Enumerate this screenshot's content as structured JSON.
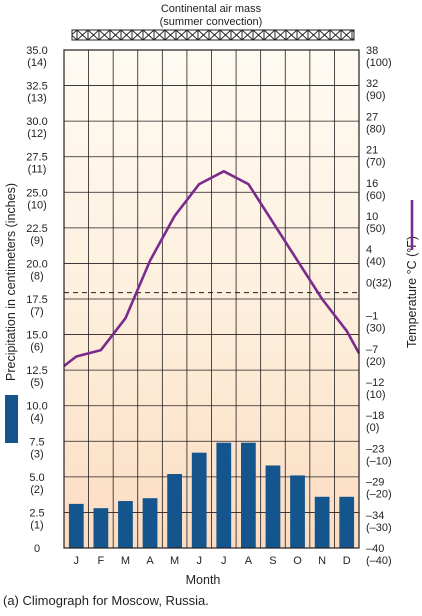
{
  "chart_data": {
    "type": "climograph",
    "banner": {
      "line1": "Continental air mass",
      "line2": "(summer convection)"
    },
    "months": [
      "J",
      "F",
      "M",
      "A",
      "M",
      "J",
      "J",
      "A",
      "S",
      "O",
      "N",
      "D"
    ],
    "xlabel": "Month",
    "precipitation": {
      "label": "Precipitation in centimeters (inches)",
      "unit": "cm",
      "ylim": [
        0,
        35
      ],
      "ticks": [
        "0",
        "2.5\n(1)",
        "5.0\n(2)",
        "7.5\n(3)",
        "10.0\n(4)",
        "12.5\n(5)",
        "15.0\n(6)",
        "17.5\n(7)",
        "20.0\n(8)",
        "22.5\n(9)",
        "25.0\n(10)",
        "27.5\n(11)",
        "30.0\n(12)",
        "32.5\n(13)",
        "35.0\n(14)"
      ],
      "values": [
        3.1,
        2.8,
        3.3,
        3.5,
        5.2,
        6.7,
        7.4,
        7.4,
        5.8,
        5.1,
        3.6,
        3.6
      ]
    },
    "temperature": {
      "label": "Temperature °C (°F)",
      "unit": "°C",
      "ylim": [
        -40,
        38
      ],
      "ticks": [
        "38\n(100)",
        "32\n(90)",
        "27\n(80)",
        "21\n(70)",
        "16\n(60)",
        "10\n(50)",
        "4\n(40)",
        "0(32)",
        "–1\n(30)",
        "–7\n(20)",
        "–12\n(10)",
        "–18\n(0)",
        "–23\n(–10)",
        "–29\n(–20)",
        "–34\n(–30)",
        "–40\n(–40)"
      ],
      "values": [
        -10,
        -9,
        -4,
        5,
        12,
        17,
        19,
        17,
        11,
        5,
        -1,
        -6
      ],
      "freezing_line": 0
    },
    "colors": {
      "bars": "#13558c",
      "temperature_line": "#7b2a8e",
      "background_top": "#fefbf3",
      "background_bottom": "#fcdcc1",
      "grid": "#231f20"
    },
    "caption": "(a) Climograph for Moscow, Russia."
  }
}
